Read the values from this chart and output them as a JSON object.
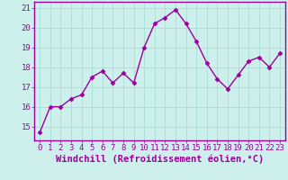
{
  "x": [
    0,
    1,
    2,
    3,
    4,
    5,
    6,
    7,
    8,
    9,
    10,
    11,
    12,
    13,
    14,
    15,
    16,
    17,
    18,
    19,
    20,
    21,
    22,
    23
  ],
  "y": [
    14.7,
    16.0,
    16.0,
    16.4,
    16.6,
    17.5,
    17.8,
    17.2,
    17.7,
    17.2,
    19.0,
    20.2,
    20.5,
    20.9,
    20.2,
    19.3,
    18.2,
    17.4,
    16.9,
    17.6,
    18.3,
    18.5,
    18.0,
    18.7
  ],
  "line_color": "#9b009b",
  "marker": "D",
  "marker_size": 2.5,
  "background_color": "#cef0ec",
  "grid_color": "#a8ddd8",
  "xlabel": "Windchill (Refroidissement éolien,°C)",
  "xlabel_fontsize": 7.5,
  "tick_fontsize": 6.5,
  "ylim": [
    14.3,
    21.3
  ],
  "yticks": [
    15,
    16,
    17,
    18,
    19,
    20,
    21
  ],
  "xlim": [
    -0.5,
    23.5
  ],
  "xticks": [
    0,
    1,
    2,
    3,
    4,
    5,
    6,
    7,
    8,
    9,
    10,
    11,
    12,
    13,
    14,
    15,
    16,
    17,
    18,
    19,
    20,
    21,
    22,
    23
  ],
  "spine_color": "#9b009b",
  "linewidth": 1.0
}
